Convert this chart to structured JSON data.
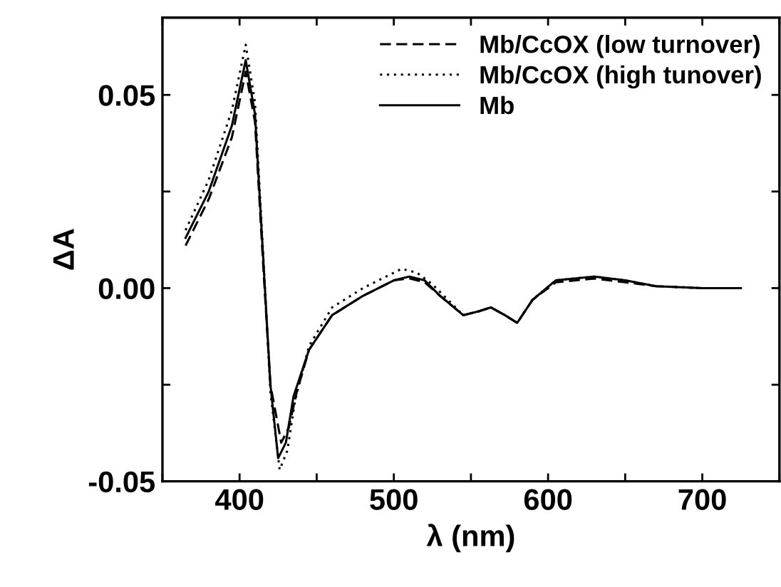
{
  "chart_data": {
    "type": "line",
    "xlabel": "λ (nm)",
    "ylabel": "ΔA",
    "xlim": [
      350,
      750
    ],
    "ylim": [
      -0.05,
      0.07
    ],
    "xticks": [
      {
        "value": 350,
        "label": null
      },
      400,
      {
        "value": 450,
        "label": null
      },
      500,
      {
        "value": 550,
        "label": null
      },
      600,
      {
        "value": 650,
        "label": null
      },
      700,
      {
        "value": 750,
        "label": null
      }
    ],
    "yticks": [
      {
        "value": -0.05,
        "label": "-0.05"
      },
      {
        "value": -0.025,
        "label": null
      },
      {
        "value": 0,
        "label": "0.00"
      },
      {
        "value": 0.025,
        "label": null
      },
      {
        "value": 0.05,
        "label": "0.05"
      }
    ],
    "grid": false,
    "legend": "top right",
    "series": [
      {
        "name": "Mb/CcOX (low turnover)",
        "color": "#000000",
        "line_style": "dashed",
        "x": [
          365,
          380,
          395,
          404,
          410,
          415,
          420,
          427,
          432,
          437,
          445,
          460,
          480,
          500,
          510,
          520,
          530,
          545,
          555,
          563,
          572,
          580,
          590,
          605,
          630,
          650,
          670,
          700,
          725
        ],
        "values": [
          0.011,
          0.023,
          0.039,
          0.056,
          0.043,
          0.008,
          -0.025,
          -0.04,
          -0.036,
          -0.027,
          -0.016,
          -0.007,
          -0.002,
          0.002,
          0.0025,
          0.0015,
          -0.002,
          -0.007,
          -0.006,
          -0.005,
          -0.007,
          -0.009,
          -0.003,
          0.0015,
          0.0025,
          0.0015,
          0.0005,
          0.0,
          0.0
        ]
      },
      {
        "name": "Mb/CcOX (high tunover)",
        "color": "#000000",
        "line_style": "dotted",
        "x": [
          365,
          380,
          395,
          404,
          410,
          415,
          420,
          426,
          431,
          436,
          445,
          460,
          480,
          505,
          515,
          525,
          535,
          545,
          555,
          563,
          572,
          580,
          590,
          605,
          630,
          650,
          670,
          700,
          725
        ],
        "values": [
          0.015,
          0.028,
          0.046,
          0.063,
          0.048,
          0.011,
          -0.027,
          -0.047,
          -0.042,
          -0.029,
          -0.015,
          -0.005,
          0.0,
          0.005,
          0.004,
          0.001,
          -0.003,
          -0.007,
          -0.006,
          -0.005,
          -0.007,
          -0.009,
          -0.003,
          0.002,
          0.003,
          0.002,
          0.0005,
          0.0,
          0.0
        ]
      },
      {
        "name": "Mb",
        "color": "#000000",
        "line_style": "solid",
        "x": [
          365,
          380,
          395,
          404,
          410,
          415,
          420,
          425,
          430,
          435,
          445,
          460,
          480,
          500,
          510,
          520,
          530,
          545,
          555,
          563,
          572,
          580,
          590,
          605,
          630,
          650,
          670,
          700,
          725
        ],
        "values": [
          0.013,
          0.025,
          0.042,
          0.059,
          0.045,
          0.01,
          -0.025,
          -0.044,
          -0.04,
          -0.028,
          -0.016,
          -0.007,
          -0.002,
          0.002,
          0.003,
          0.002,
          -0.002,
          -0.007,
          -0.006,
          -0.005,
          -0.007,
          -0.009,
          -0.003,
          0.002,
          0.003,
          0.002,
          0.0005,
          0.0,
          0.0
        ]
      }
    ]
  }
}
